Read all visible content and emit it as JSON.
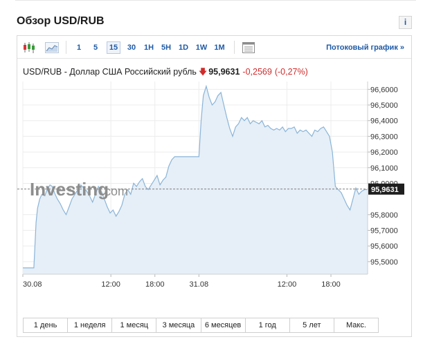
{
  "page": {
    "title": "Обзор USD/RUB",
    "info_label": "i"
  },
  "toolbar": {
    "timeframes": [
      "1",
      "5",
      "15",
      "30",
      "1H",
      "5H",
      "1D",
      "1W",
      "1M"
    ],
    "active_timeframe": "15",
    "stream_link": "Потоковый график »",
    "icons": [
      "candlestick-chart-icon",
      "area-chart-icon",
      "table-view-icon"
    ]
  },
  "quote": {
    "name": "USD/RUB - Доллар США Российский рубль",
    "price": "95,9631",
    "change": "-0,2569",
    "change_pct": "(-0,27%)",
    "direction": "down",
    "down_color": "#d12b2b"
  },
  "watermark": {
    "brand": "Investing",
    "suffix": ".com"
  },
  "ranges": [
    "1 день",
    "1 неделя",
    "1 месяц",
    "3 месяца",
    "6 месяцев",
    "1 год",
    "5 лет",
    "Макс."
  ],
  "chart_data": {
    "type": "area",
    "x_tick_labels": [
      "30.08",
      "12:00",
      "18:00",
      "31.08",
      "12:00",
      "18:00"
    ],
    "x_ticks_hour": [
      0,
      12,
      18,
      24,
      36,
      42
    ],
    "y_tick_labels": [
      "96,6000",
      "96,5000",
      "96,4000",
      "96,3000",
      "96,2000",
      "96,1000",
      "96,0000",
      "95,8000",
      "95,7000",
      "95,6000",
      "95,5000"
    ],
    "y_ticks": [
      96.6,
      96.5,
      96.4,
      96.3,
      96.2,
      96.1,
      96.0,
      95.8,
      95.7,
      95.6,
      95.5
    ],
    "ylim": [
      95.42,
      96.65
    ],
    "xlim_hour": [
      0,
      47
    ],
    "last_value_label": "95,9631",
    "last_value": 95.9631,
    "line_color": "#8ab4d8",
    "fill_color": "#e6eff7",
    "series": [
      {
        "x": [
          0.0,
          0.5,
          1.0,
          1.5,
          1.8,
          2.0,
          2.3,
          2.6,
          3.0,
          3.3,
          3.7,
          4.0,
          4.4,
          4.7,
          5.1,
          5.5,
          5.9,
          6.3,
          6.7,
          7.1,
          7.5,
          7.9,
          8.3,
          8.7,
          9.1,
          9.5,
          9.9,
          10.3,
          10.7,
          11.1,
          11.5,
          11.9,
          12.3,
          12.7,
          13.1,
          13.5,
          13.9,
          14.3,
          14.7,
          15.1,
          15.5,
          15.9,
          16.3,
          16.7,
          17.1,
          17.5,
          17.9,
          18.3,
          18.7,
          19.1,
          19.5,
          19.9,
          20.3,
          20.7,
          21.5,
          22.5,
          23.5,
          24.0,
          24.3,
          24.6,
          25.0,
          25.4,
          25.8,
          26.2,
          26.6,
          27.0,
          27.4,
          27.8,
          28.2,
          28.6,
          29.0,
          29.4,
          29.8,
          30.2,
          30.6,
          31.0,
          31.4,
          31.8,
          32.2,
          32.6,
          33.0,
          33.4,
          33.8,
          34.2,
          34.6,
          35.0,
          35.4,
          35.8,
          36.2,
          36.6,
          37.0,
          37.4,
          37.8,
          38.2,
          38.6,
          39.0,
          39.4,
          39.8,
          40.2,
          40.6,
          41.0,
          41.4,
          41.8,
          42.2,
          42.6,
          43.0,
          43.4,
          43.8,
          44.2,
          44.6,
          45.0,
          45.4,
          45.8,
          46.2,
          46.6,
          47.0
        ],
        "y": [
          95.46,
          95.46,
          95.46,
          95.46,
          95.75,
          95.84,
          95.9,
          95.93,
          95.92,
          95.96,
          95.99,
          95.98,
          95.93,
          95.9,
          95.87,
          95.83,
          95.8,
          95.85,
          95.9,
          95.93,
          95.96,
          95.99,
          95.97,
          95.95,
          95.92,
          95.88,
          95.93,
          95.98,
          95.95,
          95.9,
          95.85,
          95.81,
          95.83,
          95.79,
          95.82,
          95.86,
          95.93,
          95.96,
          95.93,
          96.0,
          95.98,
          96.01,
          96.03,
          95.98,
          95.96,
          95.99,
          96.02,
          96.05,
          95.99,
          96.02,
          96.04,
          96.11,
          96.15,
          96.17,
          96.17,
          96.17,
          96.17,
          96.17,
          96.4,
          96.56,
          96.62,
          96.55,
          96.5,
          96.52,
          96.56,
          96.58,
          96.5,
          96.42,
          96.35,
          96.3,
          96.36,
          96.38,
          96.42,
          96.4,
          96.42,
          96.38,
          96.4,
          96.39,
          96.38,
          96.4,
          96.36,
          96.37,
          96.35,
          96.34,
          96.35,
          96.34,
          96.36,
          96.33,
          96.35,
          96.35,
          96.36,
          96.32,
          96.34,
          96.33,
          96.34,
          96.32,
          96.3,
          96.34,
          96.33,
          96.35,
          96.36,
          96.33,
          96.3,
          96.2,
          95.98,
          95.96,
          95.94,
          95.9,
          95.86,
          95.83,
          95.9,
          95.97,
          95.93,
          95.95,
          95.96,
          95.96
        ]
      }
    ]
  }
}
